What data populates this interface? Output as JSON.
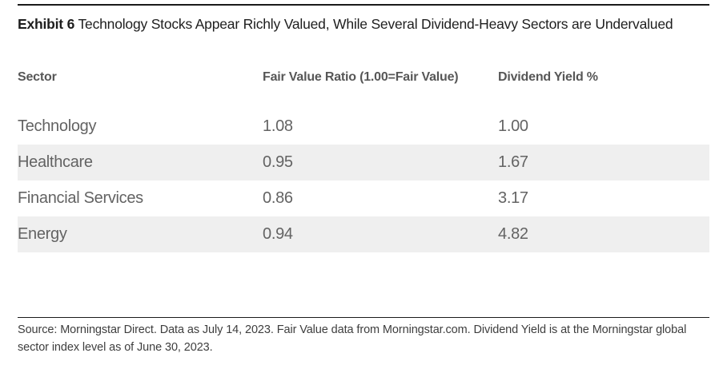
{
  "title": {
    "exhibit_label": "Exhibit 6",
    "text": "Technology Stocks Appear Richly Valued, While Several Dividend-Heavy Sectors are Undervalued"
  },
  "table": {
    "columns": [
      "Sector",
      "Fair Value Ratio (1.00=Fair Value)",
      "Dividend Yield %"
    ],
    "rows": [
      {
        "sector": "Technology",
        "fair_value_ratio": "1.08",
        "dividend_yield": "1.00"
      },
      {
        "sector": "Healthcare",
        "fair_value_ratio": "0.95",
        "dividend_yield": "1.67"
      },
      {
        "sector": "Financial Services",
        "fair_value_ratio": "0.86",
        "dividend_yield": "3.17"
      },
      {
        "sector": "Energy",
        "fair_value_ratio": "0.94",
        "dividend_yield": "4.82"
      }
    ]
  },
  "footer": {
    "source_text": "Source: Morningstar Direct. Data as July 14, 2023. Fair Value data from Morningstar.com. Dividend Yield is at the Morningstar global sector index level as of June 30, 2023."
  },
  "colors": {
    "row_alt_background": "#efefef",
    "rule": "#1a1a1a",
    "header_text": "#575757",
    "body_text": "#636363",
    "title_text": "#1e1e1e"
  }
}
